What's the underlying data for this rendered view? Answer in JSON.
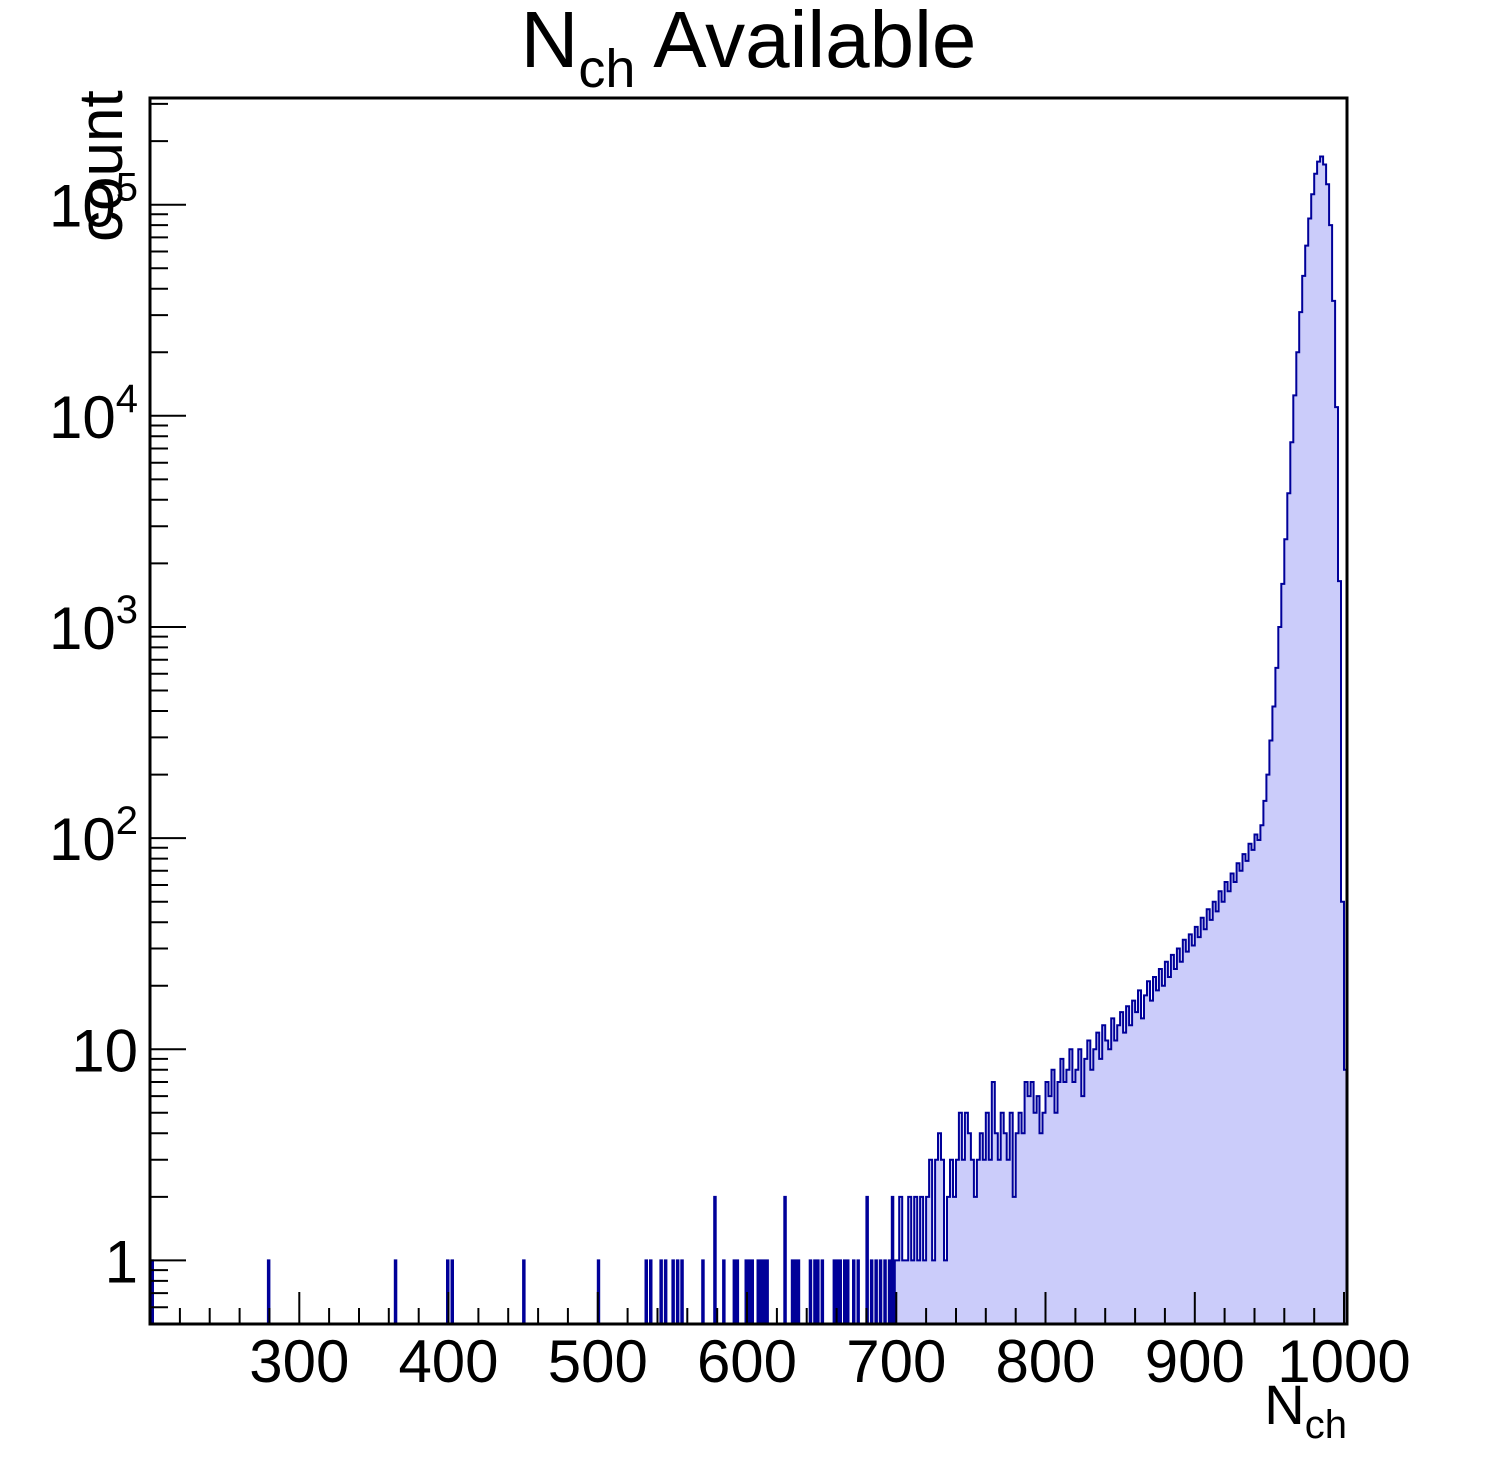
{
  "title": {
    "main": "N",
    "sub": "ch",
    "rest": " Available"
  },
  "y_axis_label": "count",
  "x_axis_label": {
    "main": "N",
    "sub": "ch"
  },
  "chart_data": {
    "type": "bar",
    "subtype": "histogram-log-y",
    "title": "N_ch Available",
    "xlabel": "N_ch",
    "ylabel": "count",
    "x_range": [
      200,
      1002
    ],
    "y_range": [
      0.5,
      320000
    ],
    "y_scale": "log",
    "grid": false,
    "legend": "none",
    "x_major_ticks": [
      300,
      400,
      500,
      600,
      700,
      800,
      900,
      1000
    ],
    "x_minor_step": 20,
    "y_tick_labels": [
      {
        "value": 1,
        "base": "1",
        "exp": ""
      },
      {
        "value": 10,
        "base": "10",
        "exp": ""
      },
      {
        "value": 100,
        "base": "10",
        "exp": "2"
      },
      {
        "value": 1000,
        "base": "10",
        "exp": "3"
      },
      {
        "value": 10000,
        "base": "10",
        "exp": "4"
      },
      {
        "value": 100000,
        "base": "10",
        "exp": "5"
      }
    ],
    "peak": {
      "x": 984,
      "count": 169000
    },
    "sparse_bin_width": 1,
    "sparse_bins": [
      [
        201,
        1
      ],
      [
        279,
        1
      ],
      [
        364,
        1
      ],
      [
        399,
        1
      ],
      [
        402,
        1
      ],
      [
        450,
        1
      ],
      [
        500,
        1
      ],
      [
        532,
        1
      ],
      [
        535,
        1
      ],
      [
        542,
        1
      ],
      [
        545,
        1
      ],
      [
        550,
        1
      ],
      [
        553,
        1
      ],
      [
        556,
        1
      ],
      [
        570,
        1
      ],
      [
        578,
        2
      ],
      [
        584,
        1
      ],
      [
        591,
        1
      ],
      [
        593,
        1
      ],
      [
        599,
        1
      ],
      [
        601,
        1
      ],
      [
        603,
        1
      ],
      [
        607,
        1
      ],
      [
        609,
        1
      ],
      [
        611,
        1
      ],
      [
        613,
        1
      ],
      [
        625,
        2
      ],
      [
        630,
        1
      ],
      [
        632,
        1
      ],
      [
        634,
        1
      ],
      [
        642,
        1
      ],
      [
        645,
        1
      ],
      [
        647,
        1
      ],
      [
        650,
        1
      ],
      [
        658,
        1
      ],
      [
        660,
        1
      ],
      [
        662,
        1
      ],
      [
        665,
        1
      ],
      [
        667,
        1
      ],
      [
        671,
        1
      ],
      [
        674,
        1
      ],
      [
        680,
        2
      ],
      [
        683,
        1
      ],
      [
        686,
        1
      ],
      [
        689,
        1
      ],
      [
        692,
        1
      ],
      [
        695,
        1
      ],
      [
        697,
        2
      ],
      [
        699,
        1
      ]
    ],
    "dense_bins": {
      "start": 700,
      "width": 2,
      "counts": [
        1,
        2,
        1,
        1,
        2,
        1,
        2,
        1,
        2,
        1,
        2,
        3,
        1,
        3,
        4,
        3,
        1,
        2,
        3,
        2,
        3,
        5,
        3,
        5,
        4,
        3,
        2,
        3,
        4,
        3,
        5,
        3,
        7,
        4,
        3,
        5,
        4,
        3,
        5,
        2,
        4,
        5,
        4,
        7,
        6,
        7,
        5,
        6,
        4,
        5,
        7,
        6,
        8,
        5,
        7,
        9,
        7,
        8,
        10,
        7,
        8,
        10,
        6,
        9,
        11,
        8,
        10,
        12,
        9,
        13,
        11,
        10,
        14,
        11,
        13,
        15,
        12,
        16,
        13,
        17,
        15,
        19,
        14,
        18,
        21,
        17,
        22,
        19,
        24,
        20,
        26,
        22,
        28,
        24,
        30,
        26,
        33,
        29,
        35,
        31,
        38,
        34,
        42,
        37,
        46,
        41,
        50,
        45,
        56,
        50,
        62,
        56,
        68,
        62,
        76,
        70,
        84,
        78,
        94,
        88,
        104,
        98,
        115,
        150,
        200,
        290,
        420,
        640,
        1000,
        1600,
        2600,
        4300,
        7500,
        12500,
        20000,
        31000,
        46000,
        64000,
        86000,
        112000,
        140000,
        160000,
        169000,
        155000,
        125000,
        80000,
        35000,
        11000,
        1650,
        50,
        8
      ]
    },
    "colors": {
      "fill": "#cbccfa",
      "line": "#000099",
      "axis": "#000000",
      "background": "#ffffff"
    }
  }
}
